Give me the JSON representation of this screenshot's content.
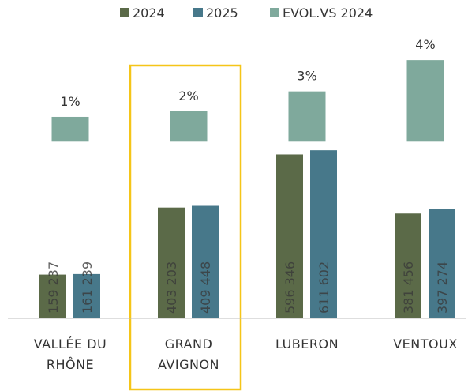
{
  "chart_data": {
    "type": "bar",
    "categories": [
      "VALLÉE DU RHÔNE",
      "GRAND AVIGNON",
      "LUBERON",
      "VENTOUX"
    ],
    "series": [
      {
        "name": "2024",
        "color": "#5b6a48",
        "values": [
          159237,
          403203,
          596346,
          381456
        ],
        "value_labels": [
          "159 237",
          "403 203",
          "596 346",
          "381 456"
        ]
      },
      {
        "name": "2025",
        "color": "#47788a",
        "values": [
          161239,
          409448,
          611602,
          397274
        ],
        "value_labels": [
          "161 239",
          "409 448",
          "611 602",
          "397 274"
        ]
      },
      {
        "name": "EVOL.VS 2024",
        "color": "#7fa99c",
        "axis": "y2",
        "values": [
          1.26,
          1.55,
          2.56,
          4.15
        ],
        "value_labels": [
          "1%",
          "2%",
          "3%",
          "4%"
        ]
      }
    ],
    "ylim": [
      0,
      1000000
    ],
    "y2lim": [
      -9,
      5
    ],
    "legend": "top"
  }
}
